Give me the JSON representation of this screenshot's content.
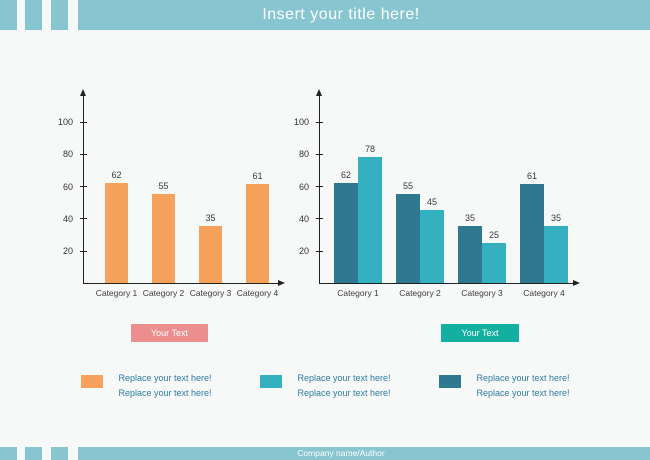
{
  "header": {
    "title": "Insert your title here!"
  },
  "footer": {
    "text": "Company name/Author"
  },
  "buttons": {
    "left_label": "Your Text",
    "right_label": "Your Text"
  },
  "legend": {
    "entries": [
      {
        "name": "orange-series",
        "color": "#F6A25C",
        "lines": [
          "Replace your text here!",
          "Replace your text here!"
        ]
      },
      {
        "name": "light-teal-series",
        "color": "#35B0C0",
        "lines": [
          "Replace your text here!",
          "Replace your text here!"
        ]
      },
      {
        "name": "dark-teal-series",
        "color": "#2F7990",
        "lines": [
          "Replace your text here!",
          "Replace your text here!"
        ]
      }
    ]
  },
  "colors": {
    "banner": "#87C5D0",
    "page_background": "#F7F8F8",
    "orange": "#F6A25C",
    "dark_teal": "#2F7990",
    "light_teal": "#35B0C0",
    "pink_button": "#EC8E8E",
    "teal_button": "#13AFA0",
    "legend_text": "#2E7DA6",
    "axis": "#222222"
  },
  "chart_data": [
    {
      "type": "bar",
      "title": "",
      "xlabel": "",
      "ylabel": "",
      "categories": [
        "Category 1",
        "Category 2",
        "Category 3",
        "Category 4"
      ],
      "series": [
        {
          "name": "orange-series",
          "color": "#F6A25C",
          "values": [
            62,
            55,
            35,
            61
          ]
        }
      ],
      "yticks": [
        20,
        40,
        60,
        80,
        100
      ],
      "ylim": [
        0,
        112
      ],
      "grid": false,
      "data_labels": true,
      "legend_position": "none"
    },
    {
      "type": "bar",
      "title": "",
      "xlabel": "",
      "ylabel": "",
      "categories": [
        "Category 1",
        "Category 2",
        "Category 3",
        "Category 4"
      ],
      "series": [
        {
          "name": "dark-teal-series",
          "color": "#2F7990",
          "values": [
            62,
            55,
            35,
            61
          ]
        },
        {
          "name": "light-teal-series",
          "color": "#35B0C0",
          "values": [
            78,
            45,
            25,
            35
          ]
        }
      ],
      "yticks": [
        20,
        40,
        60,
        80,
        100
      ],
      "ylim": [
        0,
        112
      ],
      "grid": false,
      "data_labels": true,
      "legend_position": "none"
    }
  ]
}
